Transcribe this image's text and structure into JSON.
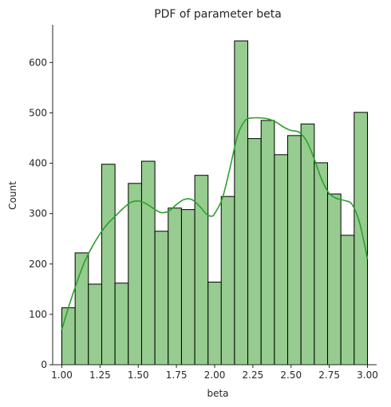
{
  "chart_data": {
    "type": "bar",
    "title": "PDF of parameter beta",
    "xlabel": "beta",
    "ylabel": "Count",
    "xlim": [
      0.94,
      3.06
    ],
    "ylim": [
      0,
      675
    ],
    "x_ticks": [
      "1.00",
      "1.25",
      "1.50",
      "1.75",
      "2.00",
      "2.25",
      "2.50",
      "2.75",
      "3.00"
    ],
    "y_ticks": [
      "0",
      "100",
      "200",
      "300",
      "400",
      "500",
      "600"
    ],
    "grid": false,
    "legend": "none",
    "bin_start": 1.0,
    "bin_width": 0.0869565,
    "bins": [
      {
        "x0": 1.0,
        "count": 113
      },
      {
        "x0": 1.087,
        "count": 222
      },
      {
        "x0": 1.174,
        "count": 160
      },
      {
        "x0": 1.261,
        "count": 398
      },
      {
        "x0": 1.348,
        "count": 162
      },
      {
        "x0": 1.435,
        "count": 360
      },
      {
        "x0": 1.522,
        "count": 404
      },
      {
        "x0": 1.609,
        "count": 265
      },
      {
        "x0": 1.696,
        "count": 311
      },
      {
        "x0": 1.783,
        "count": 308
      },
      {
        "x0": 1.87,
        "count": 376
      },
      {
        "x0": 1.957,
        "count": 164
      },
      {
        "x0": 2.043,
        "count": 334
      },
      {
        "x0": 2.13,
        "count": 643
      },
      {
        "x0": 2.217,
        "count": 449
      },
      {
        "x0": 2.304,
        "count": 485
      },
      {
        "x0": 2.391,
        "count": 417
      },
      {
        "x0": 2.478,
        "count": 455
      },
      {
        "x0": 2.565,
        "count": 478
      },
      {
        "x0": 2.652,
        "count": 401
      },
      {
        "x0": 2.739,
        "count": 339
      },
      {
        "x0": 2.826,
        "count": 257
      },
      {
        "x0": 2.913,
        "count": 501
      }
    ],
    "kde": {
      "x": [
        1.0,
        1.05,
        1.1,
        1.15,
        1.2,
        1.25,
        1.3,
        1.35,
        1.4,
        1.45,
        1.5,
        1.55,
        1.6,
        1.65,
        1.7,
        1.75,
        1.8,
        1.85,
        1.9,
        1.95,
        1.98,
        2.0,
        2.05,
        2.1,
        2.15,
        2.2,
        2.25,
        2.3,
        2.35,
        2.4,
        2.45,
        2.5,
        2.55,
        2.6,
        2.65,
        2.7,
        2.75,
        2.8,
        2.85,
        2.9,
        2.95,
        3.0
      ],
      "y": [
        70,
        120,
        165,
        205,
        235,
        260,
        280,
        295,
        310,
        322,
        325,
        320,
        310,
        302,
        305,
        318,
        328,
        328,
        315,
        298,
        295,
        300,
        330,
        390,
        455,
        485,
        490,
        490,
        488,
        482,
        472,
        465,
        462,
        445,
        410,
        368,
        340,
        330,
        326,
        318,
        280,
        210
      ]
    },
    "colors": {
      "bar_fill": "#96cc8f",
      "bar_edge": "#000000",
      "kde_line": "#2ca02c",
      "axis": "#262626"
    }
  }
}
